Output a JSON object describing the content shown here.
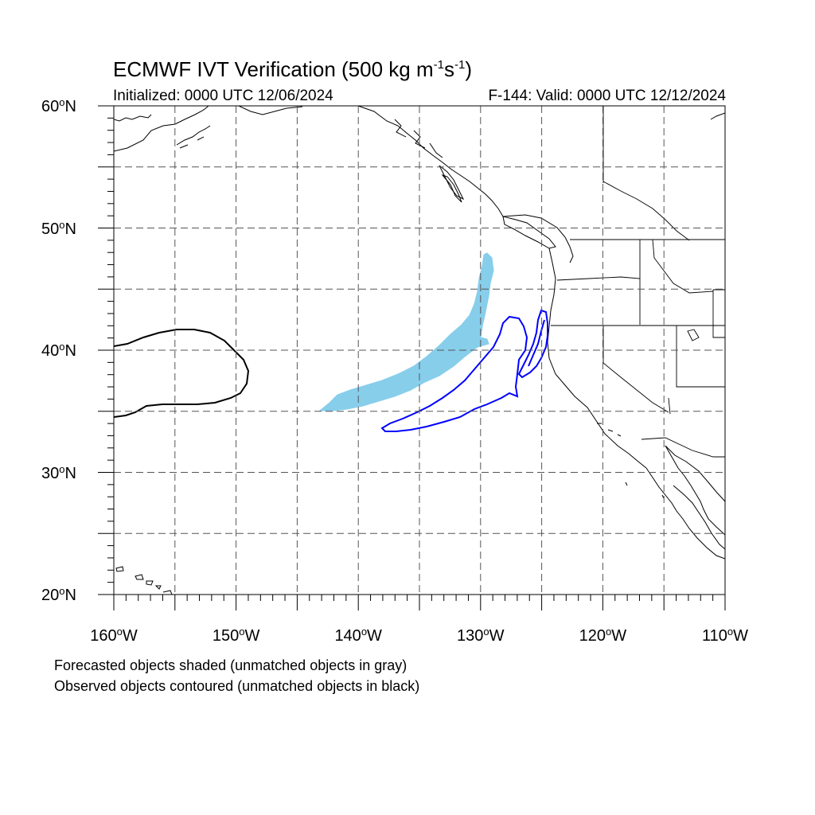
{
  "title": {
    "main": "ECMWF IVT Verification (500 kg m",
    "exp1": "-1",
    "mid": "s",
    "exp2": "-1",
    "close": ")"
  },
  "subtitle_left": "Initialized: 0000 UTC 12/06/2024",
  "subtitle_right": "F-144: Valid: 0000 UTC 12/12/2024",
  "lat_labels": [
    {
      "num": "60",
      "deg": "o",
      "dir": "N"
    },
    {
      "num": "50",
      "deg": "o",
      "dir": "N"
    },
    {
      "num": "40",
      "deg": "o",
      "dir": "N"
    },
    {
      "num": "30",
      "deg": "o",
      "dir": "N"
    },
    {
      "num": "20",
      "deg": "o",
      "dir": "N"
    }
  ],
  "lon_labels": [
    {
      "num": "160",
      "deg": "o",
      "dir": "W"
    },
    {
      "num": "150",
      "deg": "o",
      "dir": "W"
    },
    {
      "num": "140",
      "deg": "o",
      "dir": "W"
    },
    {
      "num": "130",
      "deg": "o",
      "dir": "W"
    },
    {
      "num": "120",
      "deg": "o",
      "dir": "W"
    },
    {
      "num": "110",
      "deg": "o",
      "dir": "W"
    }
  ],
  "notes": {
    "forecast": "Forecasted objects shaded (unmatched objects in gray)",
    "observed": "Observed objects contoured (unmatched objects in black)"
  },
  "map": {
    "lon_range": [
      -160,
      -110
    ],
    "lat_range": [
      20,
      60
    ],
    "colors": {
      "forecast_matched": "#87ceeb",
      "observed_matched": "#0000ff",
      "observed_unmatched": "#000000",
      "grid": "#555555"
    }
  }
}
